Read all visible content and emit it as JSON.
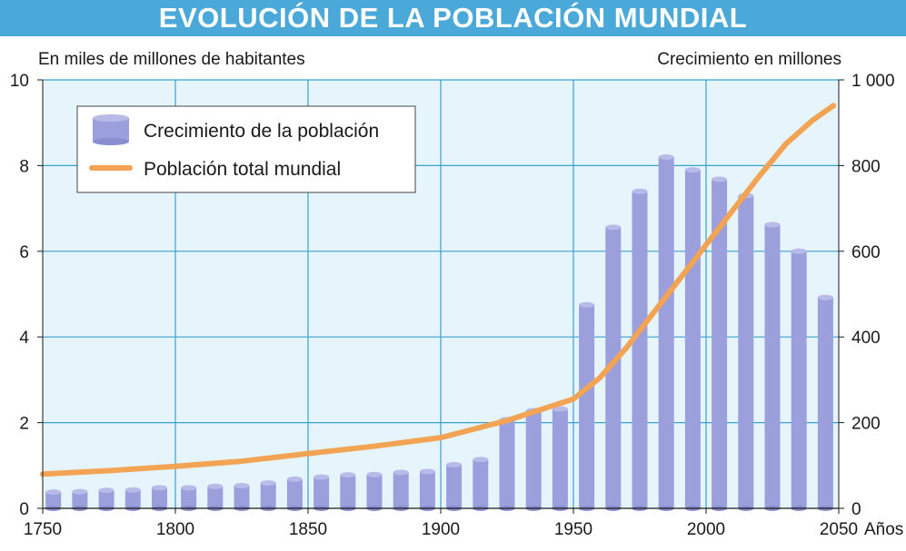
{
  "chart_data": {
    "type": "bar+line",
    "title": "EVOLUCIÓN DE LA POBLACIÓN MUNDIAL",
    "left_axis_label": "En miles de millones de habitantes",
    "right_axis_label": "Crecimiento en millones",
    "x_unit_label": "Años",
    "x_ticks": [
      "1750",
      "1800",
      "1850",
      "1900",
      "1950",
      "2000",
      "2050"
    ],
    "x_tick_values": [
      1750,
      1800,
      1850,
      1900,
      1950,
      2000,
      2050
    ],
    "x_range": [
      1750,
      2050
    ],
    "left_ticks": [
      "0",
      "2",
      "4",
      "6",
      "8",
      "10"
    ],
    "left_tick_values": [
      0,
      2,
      4,
      6,
      8,
      10
    ],
    "left_range": [
      0,
      10
    ],
    "right_ticks": [
      "0",
      "200",
      "400",
      "600",
      "800",
      "1 000"
    ],
    "right_tick_values": [
      0,
      200,
      400,
      600,
      800,
      1000
    ],
    "right_range": [
      0,
      1000
    ],
    "grid": true,
    "legend": {
      "position": "top-left",
      "bar_label": "Crecimiento de la población",
      "line_label": "Población total mundial"
    },
    "bar_series": {
      "name": "Crecimiento de la población",
      "axis": "right",
      "color": "#9b9fdc",
      "years": [
        1754,
        1764,
        1774,
        1784,
        1794,
        1805,
        1815,
        1825,
        1835,
        1845,
        1855,
        1865,
        1875,
        1885,
        1895,
        1905,
        1915,
        1925,
        1935,
        1945,
        1955,
        1965,
        1975,
        1985,
        1995,
        2005,
        2015,
        2025,
        2035,
        2045
      ],
      "values": [
        38,
        39,
        42,
        43,
        48,
        48,
        51,
        53,
        59,
        68,
        73,
        78,
        79,
        84,
        86,
        102,
        114,
        207,
        228,
        232,
        475,
        656,
        740,
        820,
        790,
        768,
        730,
        662,
        600,
        492
      ]
    },
    "line_series": {
      "name": "Población total mundial",
      "axis": "left",
      "color": "#f2a454",
      "x": [
        1750,
        1775,
        1800,
        1825,
        1850,
        1875,
        1900,
        1925,
        1950,
        1960,
        1970,
        1980,
        1990,
        2000,
        2010,
        2020,
        2030,
        2040,
        2048
      ],
      "y": [
        0.8,
        0.88,
        0.98,
        1.1,
        1.28,
        1.45,
        1.65,
        2.05,
        2.55,
        3.05,
        3.75,
        4.55,
        5.35,
        6.15,
        6.95,
        7.75,
        8.5,
        9.05,
        9.4
      ]
    }
  }
}
